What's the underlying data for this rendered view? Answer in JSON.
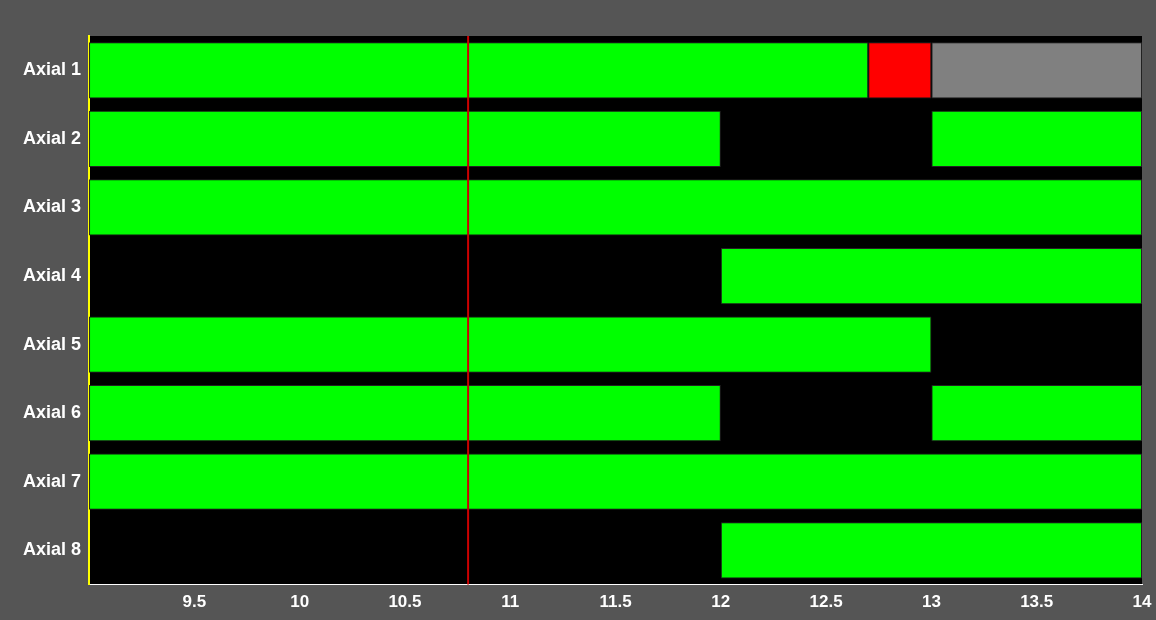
{
  "chart_data": {
    "type": "bar",
    "orientation": "horizontal",
    "categories": [
      "Axial 1",
      "Axial 2",
      "Axial 3",
      "Axial 4",
      "Axial 5",
      "Axial 6",
      "Axial 7",
      "Axial 8"
    ],
    "series": [
      {
        "color": "#00ff00",
        "base": [
          9,
          9,
          9,
          null,
          9,
          9,
          9,
          null
        ],
        "values": [
          3.7,
          3,
          5,
          null,
          4,
          3,
          5,
          null
        ]
      },
      {
        "color": "#00ff00",
        "base": [
          null,
          13,
          null,
          12,
          null,
          13,
          null,
          12
        ],
        "values": [
          null,
          1,
          null,
          2,
          null,
          1,
          null,
          2
        ]
      },
      {
        "color": "#ff0000",
        "base": [
          12.7,
          null,
          null,
          null,
          null,
          null,
          null,
          null
        ],
        "values": [
          0.3,
          null,
          null,
          null,
          null,
          null,
          null,
          null
        ]
      },
      {
        "color": "#808080",
        "base": [
          13,
          null,
          null,
          null,
          null,
          null,
          null,
          null
        ],
        "values": [
          1,
          null,
          null,
          null,
          null,
          null,
          null,
          null
        ]
      }
    ],
    "xlim": [
      9,
      14
    ],
    "xticks": [
      9.5,
      10,
      10.5,
      11,
      11.5,
      12,
      12.5,
      13,
      13.5,
      14
    ],
    "ref_lines": [
      {
        "axis": "x",
        "value": 10.8,
        "color": "#cc0000"
      }
    ],
    "grid": false,
    "legend": false
  }
}
